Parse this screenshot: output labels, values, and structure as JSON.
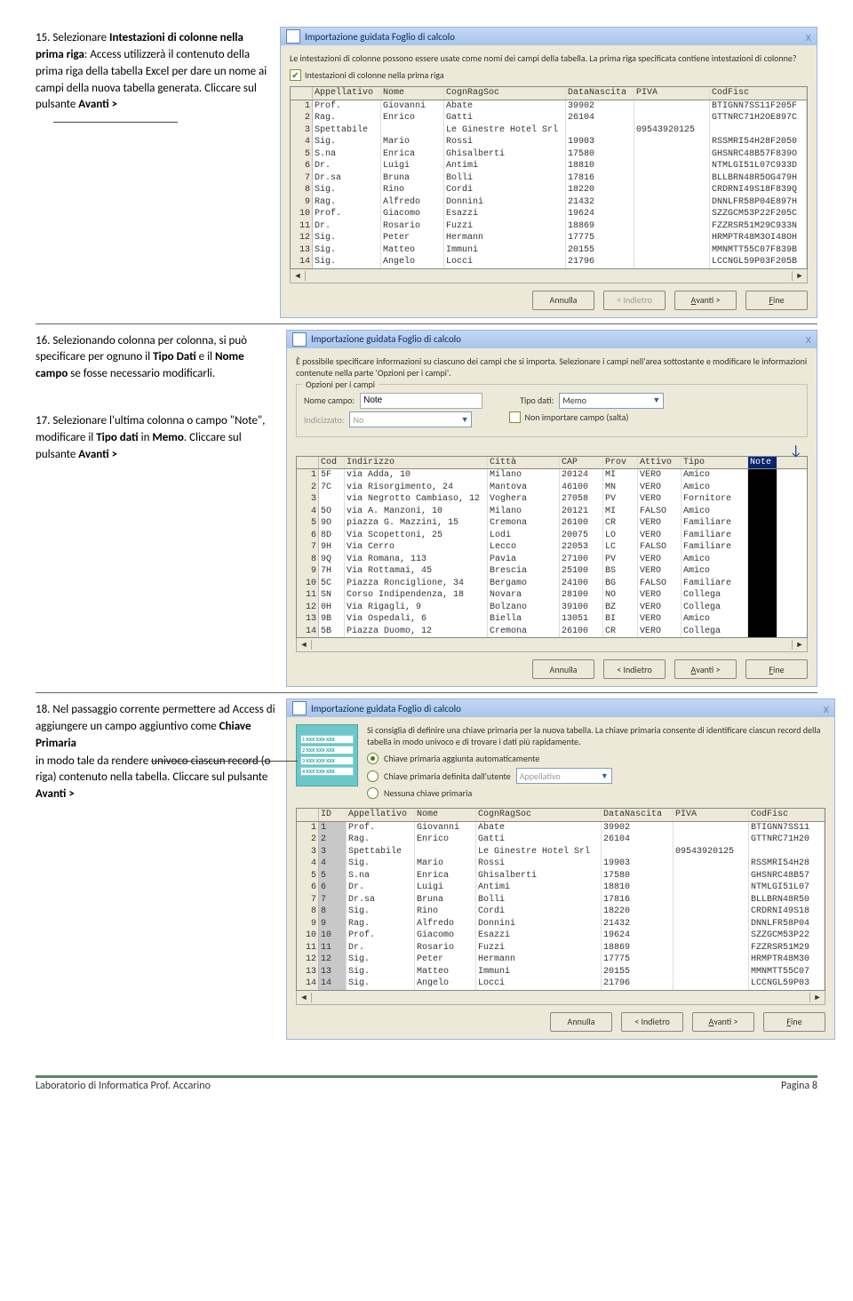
{
  "steps": {
    "s15_num": "15.",
    "s15_a": "Selezionare ",
    "s15_b": "Intestazioni di colonne nella prima riga",
    "s15_c": ": Access utilizzerà il contenuto della prima riga della tabella Excel per dare un nome ai campi della nuova tabella generata. Cliccare sul pulsante ",
    "s15_d": "Avanti >",
    "s16_num": "16.",
    "s16_a": "Selezionando colonna per colonna, si può specificare per ognuno il ",
    "s16_b": "Tipo Dati",
    "s16_c": " e il ",
    "s16_d": "Nome campo",
    "s16_e": " se fosse necessario modificarli.",
    "s17_num": "17.",
    "s17_a": "Selezionare l'ultima colonna o campo \"Note\", modificare il ",
    "s17_b": "Tipo dati",
    "s17_c": " in ",
    "s17_d": "Memo",
    "s17_e": ". Cliccare sul pulsante ",
    "s17_f": "Avanti >",
    "s18_num": "18.",
    "s18_a": "Nel passaggio corrente permettere ad Access di aggiungere un campo aggiuntivo come ",
    "s18_b": "Chiave Primaria",
    "s18_c": " in modo tale da rendere univoco ciascun record (o riga) contenuto nella tabella. Cliccare sul pulsante ",
    "s18_d": "Avanti >"
  },
  "win": {
    "title": "Importazione guidata Foglio di calcolo",
    "close": "x"
  },
  "w1": {
    "desc": "Le intestazioni di colonne possono essere usate come nomi dei campi della tabella. La prima riga specificata contiene intestazioni di colonne?",
    "chk": "Intestazioni di colonne nella prima riga",
    "cols": [
      "Appellativo",
      "Nome",
      "CognRagSoc",
      "DataNascita",
      "PIVA",
      "CodFisc"
    ],
    "widths": [
      72,
      66,
      132,
      72,
      80,
      104
    ],
    "rows": [
      [
        "Prof.",
        "Giovanni",
        "Abate",
        "39902",
        "",
        "BTIGNN7SS11F205F"
      ],
      [
        "Rag.",
        "Enrico",
        "Gatti",
        "26104",
        "",
        "GTTNRC71H2OE897C"
      ],
      [
        "Spettabile",
        "",
        "Le Ginestre Hotel Srl",
        "",
        "09543920125",
        ""
      ],
      [
        "Sig.",
        "Mario",
        "Rossi",
        "19903",
        "",
        "RSSMRI54H28F2050"
      ],
      [
        "S.na",
        "Enrica",
        "Ghisalberti",
        "17580",
        "",
        "GHSNRC48B57F839O"
      ],
      [
        "Dr.",
        "Luigi",
        "Antimi",
        "18810",
        "",
        "NTMLGI51L07C933D"
      ],
      [
        "Dr.sa",
        "Bruna",
        "Bolli",
        "17816",
        "",
        "BLLBRN48R5OG479H"
      ],
      [
        "Sig.",
        "Rino",
        "Cordi",
        "18220",
        "",
        "CRDRNI49S18F839Q"
      ],
      [
        "Rag.",
        "Alfredo",
        "Donnini",
        "21432",
        "",
        "DNNLFR58P04E897H"
      ],
      [
        "Prof.",
        "Giacomo",
        "Esazzi",
        "19624",
        "",
        "SZZGCM53P22F205C"
      ],
      [
        "Dr.",
        "Rosario",
        "Fuzzi",
        "18869",
        "",
        "FZZRSR51M29C933N"
      ],
      [
        "Sig.",
        "Peter",
        "Hermann",
        "17775",
        "",
        "HRMPTR48M3OI48OH"
      ],
      [
        "Sig.",
        "Matteo",
        "Immuni",
        "20155",
        "",
        "MMNMTT55C07F839B"
      ],
      [
        "Sig.",
        "Angelo",
        "Locci",
        "21796",
        "",
        "LCCNGL59P03F205B"
      ]
    ]
  },
  "w2": {
    "desc": "È possibile specificare informazioni su ciascuno dei campi che si importa. Selezionare i campi nell'area sottostante e modificare le informazioni contenute nella parte 'Opzioni per i campi'.",
    "group": "Opzioni per i campi",
    "lbl_nome": "Nome campo:",
    "val_nome": "Note",
    "lbl_tipo": "Tipo dati:",
    "val_tipo": "Memo",
    "lbl_idx": "Indicizzato:",
    "val_idx": "No",
    "chk_salta": "Non importare campo (salta)",
    "cols": [
      "Cod",
      "Indirizzo",
      "Città",
      "CAP",
      "Prov",
      "Attivo",
      "Tipo",
      "Note"
    ],
    "widths": [
      24,
      156,
      76,
      44,
      34,
      44,
      70,
      28
    ],
    "rows": [
      [
        "5F",
        "via Adda, 10",
        "Milano",
        "20124",
        "MI",
        "VERO",
        "Amico",
        ""
      ],
      [
        "7C",
        "via Risorgimento, 24",
        "Mantova",
        "46100",
        "MN",
        "VERO",
        "Amico",
        ""
      ],
      [
        "",
        "via Negrotto Cambiaso, 12",
        "Voghera",
        "27058",
        "PV",
        "VERO",
        "Fornitore",
        ""
      ],
      [
        "5O",
        "via A. Manzoni, 10",
        "Milano",
        "20121",
        "MI",
        "FALSO",
        "Amico",
        ""
      ],
      [
        "9O",
        "piazza G. Mazzini, 15",
        "Cremona",
        "26100",
        "CR",
        "VERO",
        "Familiare",
        ""
      ],
      [
        "8D",
        "Via Scopettoni, 25",
        "Lodi",
        "20075",
        "LO",
        "VERO",
        "Familiare",
        ""
      ],
      [
        "9H",
        "Via Cerro",
        "Lecco",
        "22053",
        "LC",
        "FALSO",
        "Familiare",
        ""
      ],
      [
        "9Q",
        "Via Romana, 113",
        "Pavia",
        "27100",
        "PV",
        "VERO",
        "Amico",
        ""
      ],
      [
        "7H",
        "Via Rottamai, 45",
        "Brescia",
        "25100",
        "BS",
        "VERO",
        "Amico",
        ""
      ],
      [
        "5C",
        "Piazza Ronciglione, 34",
        "Bergamo",
        "24100",
        "BG",
        "FALSO",
        "Familiare",
        ""
      ],
      [
        "SN",
        "Corso Indipendenza, 18",
        "Novara",
        "28100",
        "NO",
        "VERO",
        "Collega",
        ""
      ],
      [
        "0H",
        "Via Rigagli, 9",
        "Bolzano",
        "39100",
        "BZ",
        "VERO",
        "Collega",
        ""
      ],
      [
        "9B",
        "Via Ospedali, 6",
        "Biella",
        "13051",
        "BI",
        "VERO",
        "Amico",
        ""
      ],
      [
        "5B",
        "Piazza Duomo, 12",
        "Cremona",
        "26100",
        "CR",
        "VERO",
        "Collega",
        ""
      ]
    ]
  },
  "w3": {
    "desc": "Si consiglia di definire una chiave primaria per la nuova tabella. La chiave primaria consente di identificare ciascun record della tabella in modo univoco e di trovare i dati più rapidamente.",
    "r1": "Chiave primaria aggiunta automaticamente",
    "r2": "Chiave primaria definita dall'utente",
    "r2_val": "Appellativo",
    "r3": "Nessuna chiave primaria",
    "cols": [
      "ID",
      "Appellativo",
      "Nome",
      "CognRagSoc",
      "DataNascita",
      "PIVA",
      "CodFisc"
    ],
    "widths": [
      26,
      72,
      64,
      136,
      76,
      80,
      80
    ],
    "rows": [
      [
        "1",
        "Prof.",
        "Giovanni",
        "Abate",
        "39902",
        "",
        "BTIGNN7SS11"
      ],
      [
        "2",
        "Rag.",
        "Enrico",
        "Gatti",
        "26104",
        "",
        "GTTNRC71H20"
      ],
      [
        "3",
        "Spettabile",
        "",
        "Le Ginestre Hotel Srl",
        "",
        "09543920125",
        ""
      ],
      [
        "4",
        "Sig.",
        "Mario",
        "Rossi",
        "19903",
        "",
        "RSSMRI54H28"
      ],
      [
        "5",
        "S.na",
        "Enrica",
        "Ghisalberti",
        "17580",
        "",
        "GHSNRC48B57"
      ],
      [
        "6",
        "Dr.",
        "Luigi",
        "Antimi",
        "18810",
        "",
        "NTMLGI51L07"
      ],
      [
        "7",
        "Dr.sa",
        "Bruna",
        "Bolli",
        "17816",
        "",
        "BLLBRN48R50"
      ],
      [
        "8",
        "Sig.",
        "Rino",
        "Cordi",
        "18220",
        "",
        "CRDRNI49S18"
      ],
      [
        "9",
        "Rag.",
        "Alfredo",
        "Donnini",
        "21432",
        "",
        "DNNLFR58P04"
      ],
      [
        "10",
        "Prof.",
        "Giacomo",
        "Esazzi",
        "19624",
        "",
        "SZZGCM53P22"
      ],
      [
        "11",
        "Dr.",
        "Rosario",
        "Fuzzi",
        "18869",
        "",
        "FZZRSR51M29"
      ],
      [
        "12",
        "Sig.",
        "Peter",
        "Hermann",
        "17775",
        "",
        "HRMPTR48M30"
      ],
      [
        "13",
        "Sig.",
        "Matteo",
        "Immuni",
        "20155",
        "",
        "MMNMTT55C07"
      ],
      [
        "14",
        "Sig.",
        "Angelo",
        "Locci",
        "21796",
        "",
        "LCCNGL59P03"
      ]
    ]
  },
  "btns": {
    "annulla": "Annulla",
    "indietro": "< Indietro",
    "avanti": "Avanti >",
    "fine": "Fine"
  },
  "footer": {
    "left": "Laboratorio di Informatica Prof. Accarino",
    "right": "Pagina 8"
  }
}
